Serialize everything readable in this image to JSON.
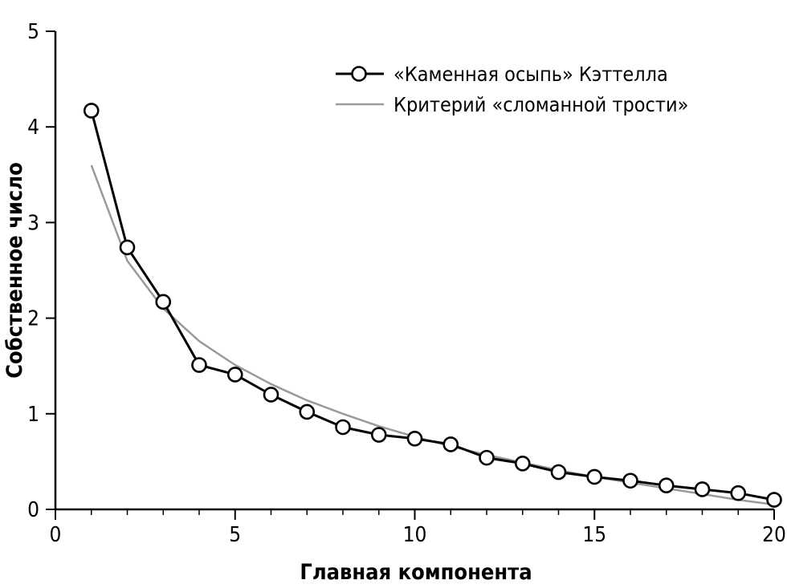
{
  "chart_data": {
    "type": "line",
    "xlabel": "Главная компонента",
    "ylabel": "Собственное число",
    "xlim": [
      0,
      20
    ],
    "ylim": [
      0,
      5
    ],
    "xticks": [
      0,
      5,
      10,
      15,
      20
    ],
    "yticks": [
      0,
      1,
      2,
      3,
      4,
      5
    ],
    "x_minor_ticks": [
      1,
      2,
      3,
      4,
      6,
      7,
      8,
      9,
      11,
      12,
      13,
      14,
      16,
      17,
      18,
      19
    ],
    "grid": false,
    "legend_position": "top-right",
    "series": [
      {
        "name": "«Каменная осыпь» Кэттелла",
        "style": "line-with-markers",
        "color": "#000000",
        "x": [
          1,
          2,
          3,
          4,
          5,
          6,
          7,
          8,
          9,
          10,
          11,
          12,
          13,
          14,
          15,
          16,
          17,
          18,
          19,
          20
        ],
        "values": [
          4.17,
          2.74,
          2.17,
          1.51,
          1.41,
          1.2,
          1.02,
          0.86,
          0.78,
          0.74,
          0.68,
          0.54,
          0.48,
          0.39,
          0.34,
          0.3,
          0.25,
          0.21,
          0.17,
          0.1
        ]
      },
      {
        "name": "Критерий «сломанной трости»",
        "style": "line",
        "color": "#9a9a9a",
        "x": [
          1,
          2,
          3,
          4,
          5,
          6,
          7,
          8,
          9,
          10,
          11,
          12,
          13,
          14,
          15,
          16,
          17,
          18,
          19,
          20
        ],
        "values": [
          3.6,
          2.6,
          2.1,
          1.76,
          1.51,
          1.31,
          1.14,
          1.0,
          0.87,
          0.76,
          0.66,
          0.57,
          0.49,
          0.41,
          0.34,
          0.28,
          0.22,
          0.16,
          0.1,
          0.05
        ]
      }
    ]
  }
}
